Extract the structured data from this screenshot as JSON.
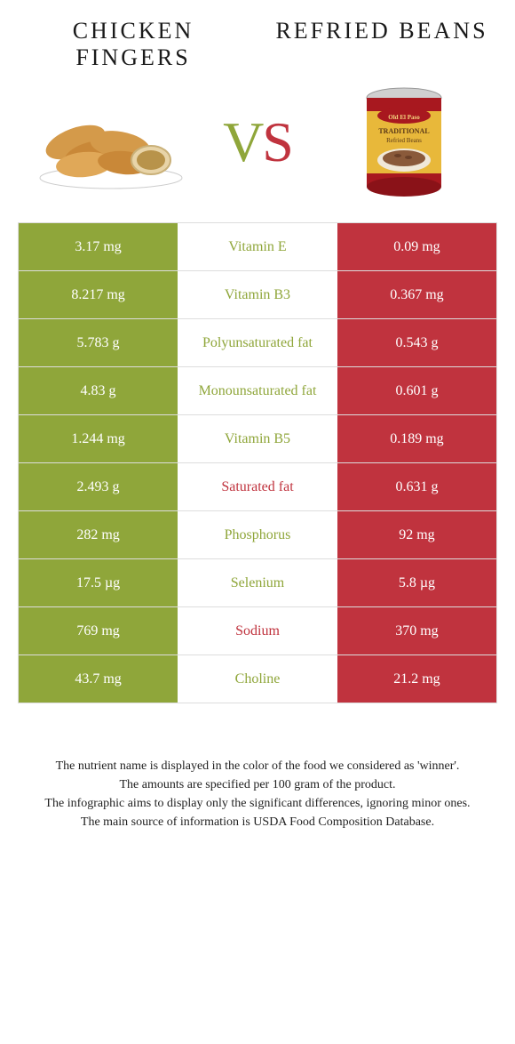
{
  "foods": {
    "left": {
      "title": "CHICKEN FINGERS",
      "color": "#8fa63a"
    },
    "right": {
      "title": "REFRIED BEANS",
      "color": "#c0333e"
    }
  },
  "vs": {
    "v": "V",
    "s": "S"
  },
  "rows": [
    {
      "left": "3.17 mg",
      "name": "Vitamin E",
      "right": "0.09 mg",
      "winner": "left"
    },
    {
      "left": "8.217 mg",
      "name": "Vitamin B3",
      "right": "0.367 mg",
      "winner": "left"
    },
    {
      "left": "5.783 g",
      "name": "Polyunsaturated fat",
      "right": "0.543 g",
      "winner": "left"
    },
    {
      "left": "4.83 g",
      "name": "Monounsaturated fat",
      "right": "0.601 g",
      "winner": "left"
    },
    {
      "left": "1.244 mg",
      "name": "Vitamin B5",
      "right": "0.189 mg",
      "winner": "left"
    },
    {
      "left": "2.493 g",
      "name": "Saturated fat",
      "right": "0.631 g",
      "winner": "right"
    },
    {
      "left": "282 mg",
      "name": "Phosphorus",
      "right": "92 mg",
      "winner": "left"
    },
    {
      "left": "17.5 µg",
      "name": "Selenium",
      "right": "5.8 µg",
      "winner": "left"
    },
    {
      "left": "769 mg",
      "name": "Sodium",
      "right": "370 mg",
      "winner": "right"
    },
    {
      "left": "43.7 mg",
      "name": "Choline",
      "right": "21.2 mg",
      "winner": "left"
    }
  ],
  "footer": [
    "The nutrient name is displayed in the color of the food we considered as 'winner'.",
    "The amounts are specified per 100 gram of the product.",
    "The infographic aims to display only the significant differences, ignoring minor ones.",
    "The main source of information is USDA Food Composition Database."
  ],
  "style": {
    "left_bg": "#8fa63a",
    "right_bg": "#c0333e",
    "row_border": "#dddddd",
    "text_white": "#ffffff"
  }
}
